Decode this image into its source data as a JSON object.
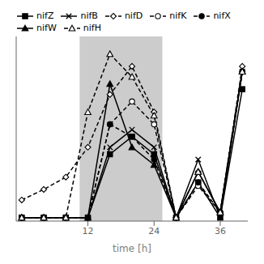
{
  "chart_data": {
    "type": "line",
    "xlabel": "time [h]",
    "x": [
      0,
      4,
      8,
      12,
      16,
      20,
      24,
      28,
      32,
      36,
      40
    ],
    "series": [
      {
        "name": "nifZ",
        "color": "#000000",
        "marker": "square",
        "line_style": "solid",
        "values": [
          0.02,
          0.02,
          0.02,
          0.02,
          0.38,
          0.48,
          0.38,
          0.02,
          0.22,
          0.02,
          0.75
        ]
      },
      {
        "name": "nifB",
        "color": "#000000",
        "marker": "x",
        "line_style": "solid",
        "values": [
          0.02,
          0.02,
          0.02,
          0.02,
          0.42,
          0.52,
          0.42,
          0.02,
          0.35,
          0.02,
          0.85
        ]
      },
      {
        "name": "nifD",
        "color": "#000000",
        "marker": "diamond-open",
        "line_style": "dashed",
        "values": [
          0.12,
          0.18,
          0.25,
          0.42,
          0.72,
          0.88,
          0.62,
          0.02,
          0.28,
          0.05,
          0.88
        ]
      },
      {
        "name": "nifK",
        "color": "#000000",
        "marker": "circle-open",
        "line_style": "dashed",
        "values": [
          0.02,
          0.02,
          0.02,
          0.02,
          0.55,
          0.68,
          0.55,
          0.02,
          0.2,
          0.05,
          0.85
        ]
      },
      {
        "name": "nifX",
        "color": "#000000",
        "marker": "circle",
        "line_style": "dashed",
        "values": [
          0.02,
          0.02,
          0.02,
          0.02,
          0.55,
          0.48,
          0.35,
          0.02,
          0.22,
          0.05,
          0.85
        ]
      },
      {
        "name": "nifW",
        "color": "#000000",
        "marker": "triangle",
        "line_style": "solid",
        "values": [
          0.02,
          0.02,
          0.02,
          0.02,
          0.78,
          0.42,
          0.32,
          0.02,
          0.28,
          0.05,
          0.85
        ]
      },
      {
        "name": "nifH",
        "color": "#000000",
        "marker": "triangle-open",
        "line_style": "dashed",
        "values": [
          0.02,
          0.02,
          0.02,
          0.62,
          0.95,
          0.82,
          0.6,
          0.02,
          0.28,
          0.05,
          0.85
        ]
      }
    ],
    "span": {
      "x": [
        10.5,
        25.5
      ],
      "color": "#cccccc"
    },
    "xlim": [
      -1,
      41
    ],
    "ylim": [
      0,
      1.05
    ],
    "xticks": [
      12,
      24,
      36
    ],
    "yticks": [],
    "legend": "upper left",
    "grid": false,
    "tick_labels": "x"
  }
}
